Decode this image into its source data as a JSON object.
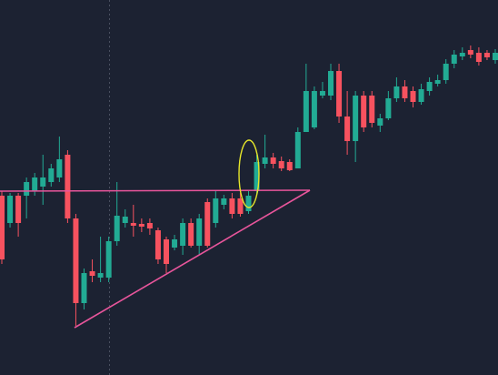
{
  "chart_data": {
    "type": "candlestick",
    "up_color": "#22ab94",
    "down_color": "#f7525f",
    "ylim": [
      0,
      412
    ],
    "open": [
      197,
      167,
      197,
      197,
      202,
      207,
      212,
      217,
      242,
      172,
      79,
      114,
      107,
      107,
      147,
      167,
      167,
      166,
      167,
      159,
      149,
      140,
      142,
      167,
      142,
      190,
      167,
      187,
      194,
      194,
      180,
      202,
      232,
      239,
      235,
      234,
      227,
      267,
      272,
      307,
      307,
      334,
      284,
      257,
      307,
      307,
      274,
      282,
      304,
      317,
      312,
      300,
      312,
      320,
      324,
      342,
      350,
      357,
      354,
      354,
      346
    ],
    "high": [
      202,
      200,
      200,
      217,
      222,
      242,
      232,
      262,
      247,
      177,
      117,
      127,
      152,
      152,
      212,
      182,
      187,
      172,
      172,
      162,
      152,
      154,
      172,
      172,
      177,
      194,
      202,
      198,
      200,
      200,
      202,
      242,
      264,
      244,
      240,
      237,
      272,
      342,
      317,
      322,
      342,
      342,
      312,
      312,
      312,
      312,
      287,
      312,
      327,
      324,
      317,
      320,
      327,
      330,
      347,
      357,
      360,
      362,
      360,
      357,
      358
    ],
    "low": [
      122,
      162,
      152,
      172,
      197,
      187,
      207,
      212,
      167,
      54,
      72,
      102,
      102,
      102,
      142,
      162,
      152,
      157,
      154,
      122,
      112,
      137,
      132,
      140,
      132,
      140,
      162,
      182,
      172,
      174,
      177,
      197,
      227,
      227,
      224,
      224,
      227,
      267,
      270,
      304,
      302,
      277,
      242,
      234,
      267,
      272,
      267,
      280,
      300,
      300,
      294,
      297,
      307,
      317,
      320,
      337,
      346,
      348,
      340,
      346,
      342
    ],
    "close": [
      127,
      197,
      167,
      212,
      217,
      217,
      227,
      237,
      172,
      79,
      112,
      109,
      112,
      147,
      175,
      174,
      164,
      163,
      161,
      127,
      122,
      149,
      167,
      142,
      172,
      142,
      194,
      194,
      177,
      177,
      197,
      234,
      239,
      232,
      227,
      225,
      267,
      312,
      312,
      312,
      334,
      284,
      257,
      307,
      272,
      277,
      282,
      304,
      317,
      304,
      300,
      314,
      322,
      324,
      342,
      352,
      354,
      352,
      344,
      349,
      354
    ]
  }
}
